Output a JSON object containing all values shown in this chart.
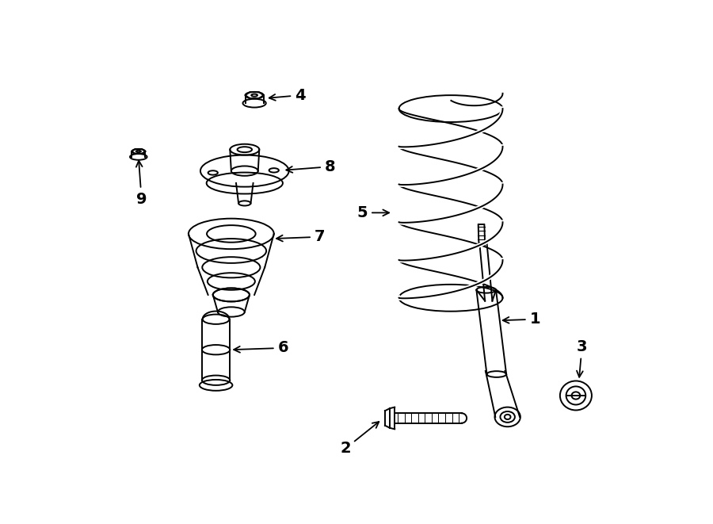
{
  "bg_color": "#ffffff",
  "line_color": "#000000",
  "fig_width": 9.0,
  "fig_height": 6.61,
  "dpi": 100,
  "lw": 1.4,
  "fontsize": 14
}
